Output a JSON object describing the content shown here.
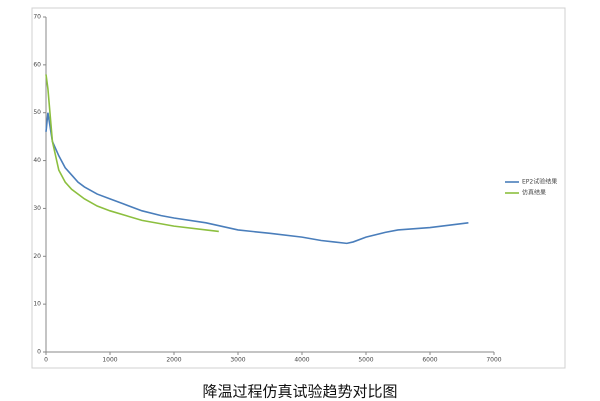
{
  "chart_data": {
    "type": "line",
    "title": "降温过程仿真试验趋势对比图",
    "xlim": [
      0,
      7000
    ],
    "xticks": [
      0,
      1000,
      2000,
      3000,
      4000,
      5000,
      6000,
      7000
    ],
    "ylim": [
      0,
      70
    ],
    "yticks": [
      0,
      10,
      20,
      30,
      40,
      50,
      60,
      70
    ],
    "grid": false,
    "legend": "right",
    "series": [
      {
        "name": "EP2试验结果",
        "color": "#4a7ebb",
        "x": [
          0,
          30,
          100,
          200,
          300,
          400,
          500,
          600,
          800,
          1000,
          1200,
          1500,
          1800,
          2000,
          2500,
          3000,
          3500,
          4000,
          4300,
          4500,
          4700,
          4800,
          5000,
          5300,
          5500,
          6000,
          6300,
          6600
        ],
        "values": [
          46,
          50,
          44,
          41,
          38.5,
          37,
          35.5,
          34.5,
          33,
          32,
          31,
          29.5,
          28.5,
          28,
          27,
          25.5,
          24.8,
          24,
          23.3,
          23,
          22.7,
          23,
          24,
          25,
          25.5,
          26,
          26.5,
          27
        ]
      },
      {
        "name": "仿真结果",
        "color": "#8cbf3f",
        "x": [
          0,
          30,
          100,
          200,
          300,
          400,
          600,
          800,
          1000,
          1500,
          2000,
          2500,
          2700
        ],
        "values": [
          58,
          55,
          44,
          38,
          35.5,
          34,
          32,
          30.5,
          29.5,
          27.5,
          26.3,
          25.5,
          25.2
        ]
      }
    ]
  }
}
